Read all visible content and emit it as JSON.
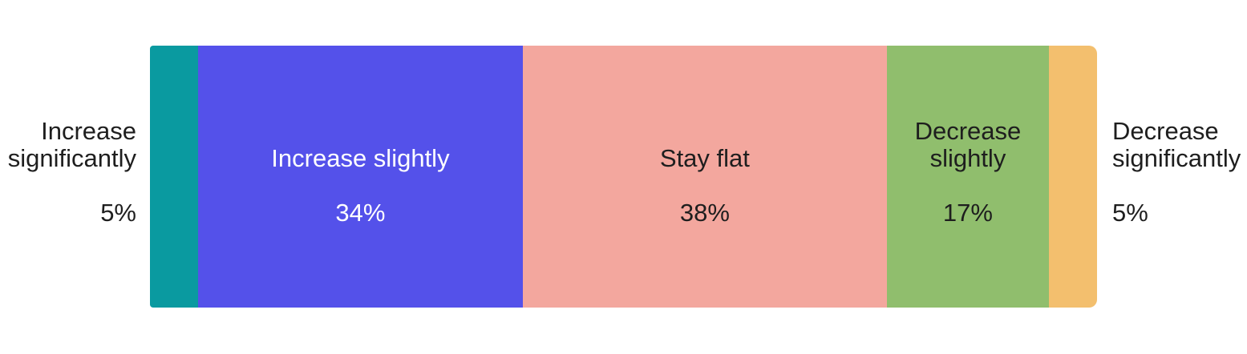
{
  "chart_data": {
    "type": "bar",
    "variant": "horizontal-stacked-single-bar",
    "title": "",
    "unit": "%",
    "background": "#ffffff",
    "text_color": "#1e1e1e",
    "categories": [
      "Increase significantly",
      "Increase slightly",
      "Stay flat",
      "Decrease slightly",
      "Decrease significantly"
    ],
    "values": [
      5,
      34,
      38,
      17,
      5
    ],
    "segments": [
      {
        "label": "Increase significantly",
        "value": 5,
        "pct_label": "5%",
        "color": "#0A9AA0",
        "text_color": "#1e1e1e",
        "label_position": "outside-left"
      },
      {
        "label": "Increase slightly",
        "value": 34,
        "pct_label": "34%",
        "color": "#5451EA",
        "text_color": "#ffffff",
        "label_position": "inside"
      },
      {
        "label": "Stay flat",
        "value": 38,
        "pct_label": "38%",
        "color": "#F3A79E",
        "text_color": "#1e1e1e",
        "label_position": "inside"
      },
      {
        "label": "Decrease slightly",
        "value": 17,
        "pct_label": "17%",
        "color": "#90BE6D",
        "text_color": "#1e1e1e",
        "label_position": "inside"
      },
      {
        "label": "Decrease significantly",
        "value": 5,
        "pct_label": "5%",
        "color": "#F3BF6E",
        "text_color": "#1e1e1e",
        "label_position": "outside-right"
      }
    ]
  }
}
